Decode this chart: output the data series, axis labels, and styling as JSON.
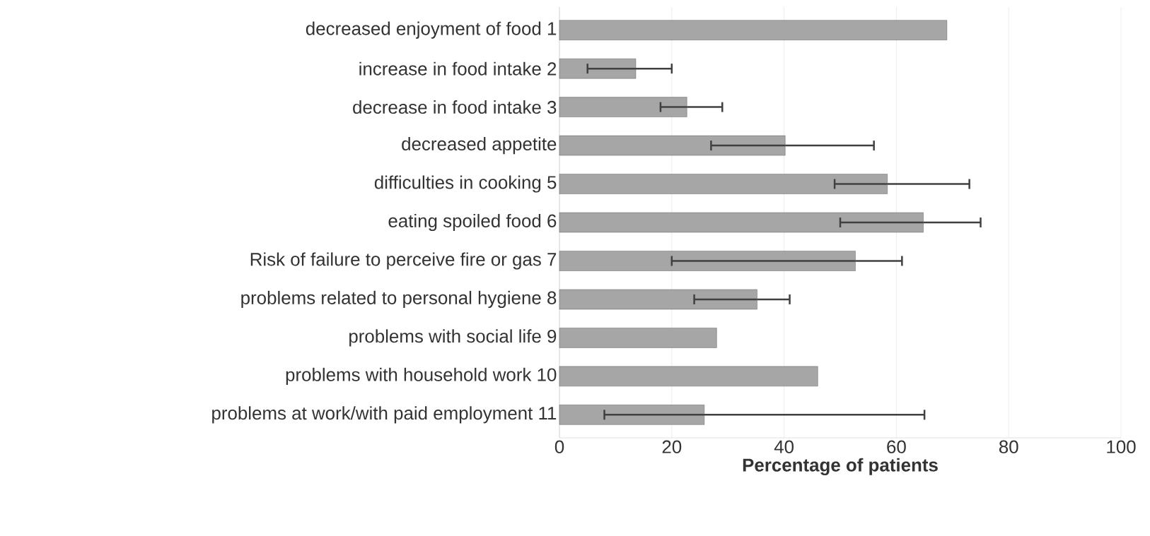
{
  "chart_data": {
    "type": "bar",
    "orientation": "horizontal",
    "xlabel": "Percentage of patients",
    "categories": [
      "decreased enjoyment of food 1",
      "increase in food intake 2",
      "decrease in food intake 3",
      "decreased appetite",
      "difficulties in cooking 5",
      "eating spoiled food 6",
      "Risk of failure to perceive fire or gas 7",
      "problems related to personal hygiene 8",
      "problems with social life 9",
      "problems with household work 10",
      "problems at work/with paid employment 11"
    ],
    "values": [
      69,
      13.6,
      22.7,
      40.2,
      58.4,
      64.8,
      52.7,
      35.2,
      28,
      46,
      25.8
    ],
    "errors": [
      null,
      [
        5,
        20
      ],
      [
        18,
        29
      ],
      [
        27,
        56
      ],
      [
        49,
        73
      ],
      [
        50,
        75
      ],
      [
        20,
        61
      ],
      [
        24,
        41
      ],
      null,
      null,
      [
        8,
        65
      ]
    ],
    "color": "#a6a6a6",
    "xlim": [
      0,
      100
    ],
    "xticks": [
      0,
      20,
      40,
      60,
      80,
      100
    ],
    "grid": "x"
  }
}
